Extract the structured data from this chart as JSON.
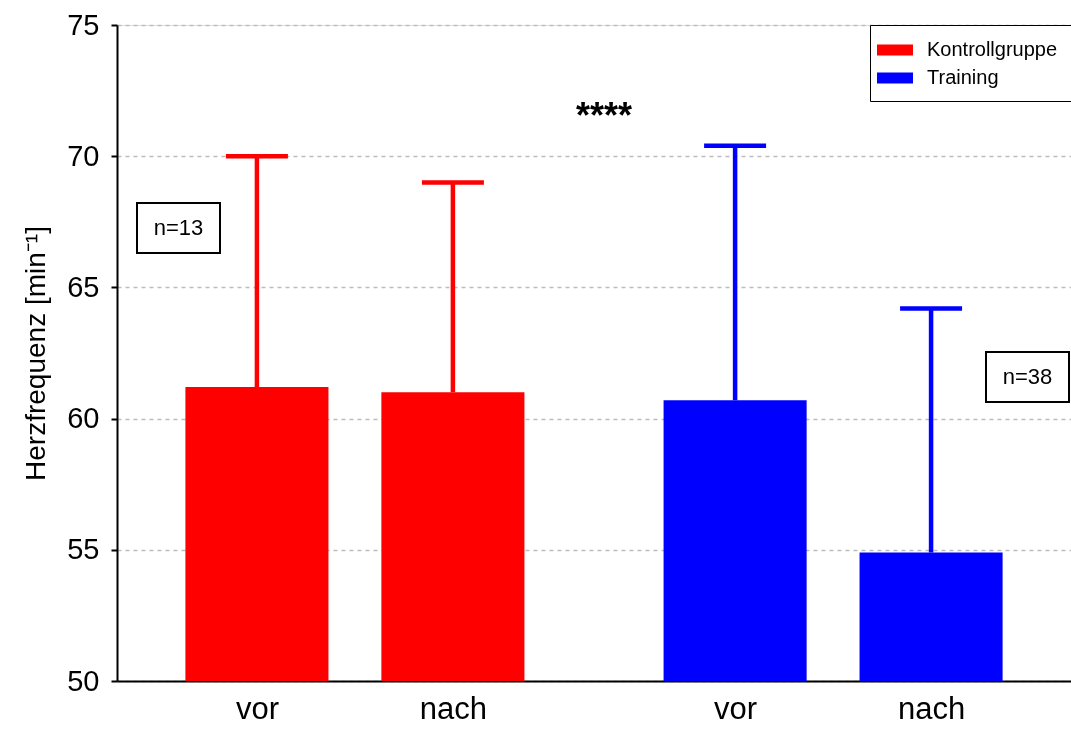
{
  "chart_data": {
    "type": "bar",
    "categories": [
      "vor",
      "nach",
      "vor",
      "nach"
    ],
    "series": [
      {
        "name": "Kontrollgruppe",
        "color": "#ff0000",
        "values": [
          61.2,
          61.0,
          null,
          null
        ],
        "errors": [
          [
            61.2,
            70.0
          ],
          [
            61.0,
            69.0
          ],
          null,
          null
        ]
      },
      {
        "name": "Training",
        "color": "#0000ff",
        "values": [
          null,
          null,
          60.7,
          54.9
        ],
        "errors": [
          null,
          null,
          [
            60.7,
            70.4
          ],
          [
            54.9,
            64.2
          ]
        ]
      }
    ],
    "ylabel": "Herzfrequenz [min⁻¹]",
    "ylim": [
      50,
      75
    ],
    "yticks": [
      50,
      55,
      60,
      65,
      70,
      75
    ],
    "grid": "y",
    "legend": "top right",
    "annotations": [
      "****",
      "n=13",
      "n=38"
    ]
  }
}
